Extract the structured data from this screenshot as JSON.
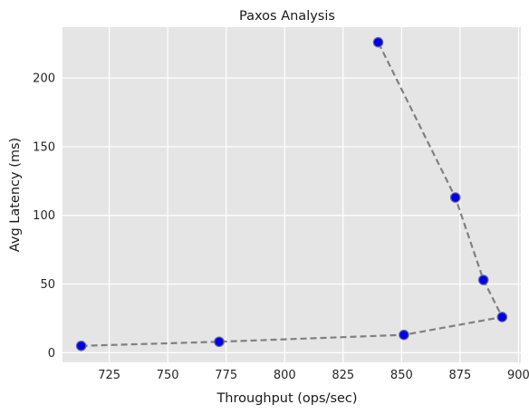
{
  "chart_data": {
    "type": "line",
    "title": "Paxos Analysis",
    "xlabel": "Throughput (ops/sec)",
    "ylabel": "Avg Latency (ms)",
    "xlim": [
      705,
      901
    ],
    "ylim": [
      -7,
      237
    ],
    "xticks": [
      725,
      750,
      775,
      800,
      825,
      850,
      875,
      900
    ],
    "yticks": [
      0,
      50,
      100,
      150,
      200
    ],
    "grid": true,
    "series": [
      {
        "x": [
          713,
          772,
          851,
          893,
          885,
          873,
          840
        ],
        "y": [
          5,
          8,
          13,
          26,
          53,
          113,
          226
        ],
        "line_color": "#808080",
        "line_style": "dashed",
        "marker_color": "#0000ee",
        "marker_edge": "#6a6a8a"
      }
    ],
    "colors": {
      "plot_background": "#e5e5e5",
      "grid": "#ffffff"
    }
  }
}
